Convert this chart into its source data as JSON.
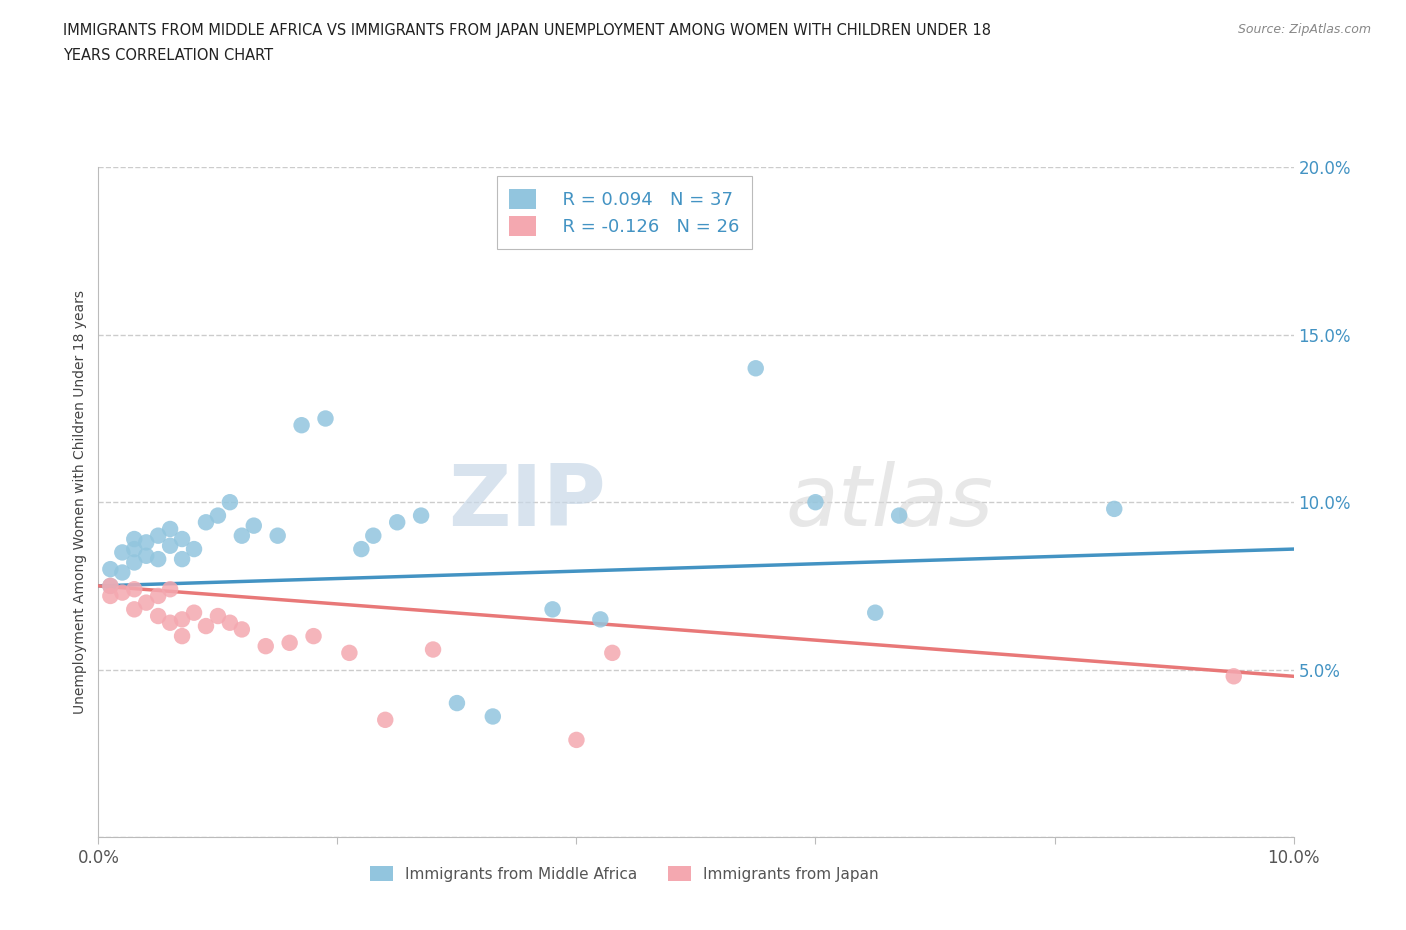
{
  "title_line1": "IMMIGRANTS FROM MIDDLE AFRICA VS IMMIGRANTS FROM JAPAN UNEMPLOYMENT AMONG WOMEN WITH CHILDREN UNDER 18",
  "title_line2": "YEARS CORRELATION CHART",
  "source": "Source: ZipAtlas.com",
  "ylabel": "Unemployment Among Women with Children Under 18 years",
  "xlim": [
    0.0,
    0.1
  ],
  "ylim": [
    0.0,
    0.2
  ],
  "xticks": [
    0.0,
    0.02,
    0.04,
    0.06,
    0.08,
    0.1
  ],
  "yticks": [
    0.0,
    0.05,
    0.1,
    0.15,
    0.2
  ],
  "blue_R": 0.094,
  "blue_N": 37,
  "pink_R": -0.126,
  "pink_N": 26,
  "blue_color": "#92C5DE",
  "pink_color": "#F4A8B0",
  "blue_line_color": "#4393C3",
  "pink_line_color": "#E87878",
  "blue_scatter_x": [
    0.001,
    0.001,
    0.002,
    0.002,
    0.003,
    0.003,
    0.003,
    0.004,
    0.004,
    0.005,
    0.005,
    0.006,
    0.006,
    0.007,
    0.007,
    0.008,
    0.009,
    0.01,
    0.011,
    0.012,
    0.013,
    0.015,
    0.017,
    0.019,
    0.022,
    0.023,
    0.025,
    0.027,
    0.03,
    0.033,
    0.038,
    0.042,
    0.055,
    0.06,
    0.065,
    0.067,
    0.085
  ],
  "blue_scatter_y": [
    0.075,
    0.08,
    0.079,
    0.085,
    0.082,
    0.086,
    0.089,
    0.084,
    0.088,
    0.083,
    0.09,
    0.087,
    0.092,
    0.089,
    0.083,
    0.086,
    0.094,
    0.096,
    0.1,
    0.09,
    0.093,
    0.09,
    0.123,
    0.125,
    0.086,
    0.09,
    0.094,
    0.096,
    0.04,
    0.036,
    0.068,
    0.065,
    0.14,
    0.1,
    0.067,
    0.096,
    0.098
  ],
  "pink_scatter_x": [
    0.001,
    0.001,
    0.002,
    0.003,
    0.003,
    0.004,
    0.005,
    0.005,
    0.006,
    0.006,
    0.007,
    0.007,
    0.008,
    0.009,
    0.01,
    0.011,
    0.012,
    0.014,
    0.016,
    0.018,
    0.021,
    0.024,
    0.028,
    0.04,
    0.043,
    0.095
  ],
  "pink_scatter_y": [
    0.075,
    0.072,
    0.073,
    0.068,
    0.074,
    0.07,
    0.072,
    0.066,
    0.064,
    0.074,
    0.065,
    0.06,
    0.067,
    0.063,
    0.066,
    0.064,
    0.062,
    0.057,
    0.058,
    0.06,
    0.055,
    0.035,
    0.056,
    0.029,
    0.055,
    0.048
  ],
  "watermark_zip": "ZIP",
  "watermark_atlas": "atlas",
  "legend_label_blue": "Immigrants from Middle Africa",
  "legend_label_pink": "Immigrants from Japan",
  "background_color": "#ffffff",
  "grid_color": "#cccccc",
  "blue_trend_x0": 0.0,
  "blue_trend_y0": 0.075,
  "blue_trend_x1": 0.1,
  "blue_trend_y1": 0.086,
  "pink_trend_x0": 0.0,
  "pink_trend_y0": 0.075,
  "pink_trend_x1": 0.1,
  "pink_trend_y1": 0.048
}
